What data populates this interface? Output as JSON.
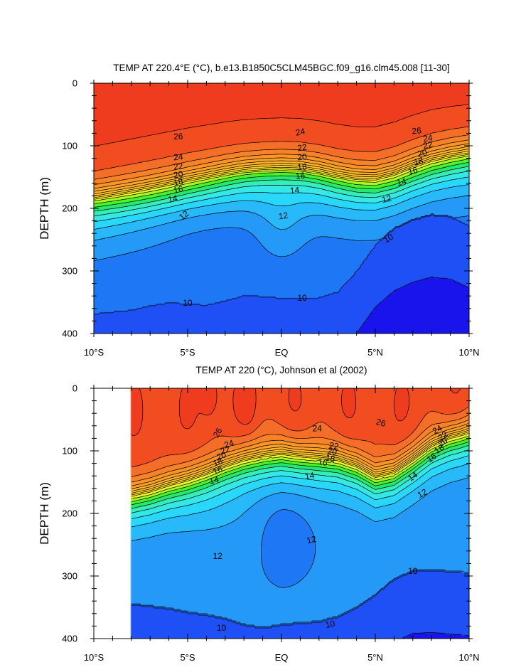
{
  "chart_data": [
    {
      "type": "contour",
      "title": "TEMP AT 220.4°E (°C), b.e13.B1850C5CLM45BGC.f09_g16.clm45.008 [11-30]",
      "ylabel": "DEPTH (m)",
      "xlim": [
        -10,
        10
      ],
      "ylim": [
        0,
        400
      ],
      "y_inverted": true,
      "xticks": [
        -10,
        -5,
        0,
        5,
        10
      ],
      "xtick_labels": [
        "10°S",
        "5°S",
        "EQ",
        "5°N",
        "10°N"
      ],
      "yticks": [
        0,
        100,
        200,
        300,
        400
      ],
      "ytick_labels": [
        "0",
        "100",
        "200",
        "300",
        "400"
      ],
      "levels_labeled": [
        "10",
        "12",
        "14",
        "16",
        "18",
        "20",
        "22",
        "24",
        "26"
      ],
      "data_start_lat": -10,
      "regions": [
        {
          "lat": [
            -10,
            -8,
            -7,
            -6,
            -5,
            -4,
            -3,
            -2,
            -1,
            0,
            1,
            2,
            3,
            4,
            5,
            6,
            7,
            8,
            9,
            10
          ],
          "depth": [
            368,
            362,
            355,
            350,
            352,
            354,
            347,
            339,
            340,
            343,
            343,
            342,
            333,
            300,
            258,
            232,
            218,
            210,
            213,
            227
          ],
          "t": 9.5
        },
        {
          "lat": [
            -10,
            -8,
            -6,
            -4,
            -2,
            0,
            2,
            4,
            6,
            8,
            10
          ],
          "depth": [
            400,
            400,
            400,
            400,
            400,
            400,
            400,
            400,
            400,
            340,
            350
          ],
          "t": 8.5
        }
      ],
      "annotations": [
        {
          "text": "10",
          "lat": -5.0,
          "depth": 351,
          "rot": 0
        },
        {
          "text": "10",
          "lat": 1.1,
          "depth": 343,
          "rot": 0
        },
        {
          "text": "10",
          "lat": 5.7,
          "depth": 248,
          "rot": -30
        },
        {
          "text": "12",
          "lat": -5.2,
          "depth": 211,
          "rot": -38
        },
        {
          "text": "12",
          "lat": 0.1,
          "depth": 212,
          "rot": -8
        },
        {
          "text": "12",
          "lat": 5.6,
          "depth": 185,
          "rot": -12
        },
        {
          "text": "14",
          "lat": -5.8,
          "depth": 185,
          "rot": -12
        },
        {
          "text": "14",
          "lat": 0.7,
          "depth": 171,
          "rot": -5
        },
        {
          "text": "14",
          "lat": 6.4,
          "depth": 158,
          "rot": -15
        },
        {
          "text": "16",
          "lat": -5.5,
          "depth": 170,
          "rot": -12
        },
        {
          "text": "16",
          "lat": 1.0,
          "depth": 148,
          "rot": -5
        },
        {
          "text": "16",
          "lat": 7.0,
          "depth": 140,
          "rot": -15
        },
        {
          "text": "18",
          "lat": -5.5,
          "depth": 158,
          "rot": -12
        },
        {
          "text": "18",
          "lat": 1.1,
          "depth": 134,
          "rot": -5
        },
        {
          "text": "18",
          "lat": 7.3,
          "depth": 125,
          "rot": -12
        },
        {
          "text": "20",
          "lat": -5.5,
          "depth": 146,
          "rot": -10
        },
        {
          "text": "20",
          "lat": 1.1,
          "depth": 118,
          "rot": -5
        },
        {
          "text": "20",
          "lat": 7.5,
          "depth": 112,
          "rot": -12
        },
        {
          "text": "22",
          "lat": -5.5,
          "depth": 133,
          "rot": -8
        },
        {
          "text": "22",
          "lat": 1.1,
          "depth": 103,
          "rot": -8
        },
        {
          "text": "22",
          "lat": 7.8,
          "depth": 99,
          "rot": -10
        },
        {
          "text": "24",
          "lat": -5.5,
          "depth": 118,
          "rot": -5
        },
        {
          "text": "24",
          "lat": 1.0,
          "depth": 78,
          "rot": -12
        },
        {
          "text": "24",
          "lat": 7.8,
          "depth": 88,
          "rot": -8
        },
        {
          "text": "26",
          "lat": -5.5,
          "depth": 85,
          "rot": -3
        },
        {
          "text": "26",
          "lat": 7.2,
          "depth": 76,
          "rot": -5
        }
      ]
    },
    {
      "type": "contour",
      "title": "TEMP AT 220 (°C), Johnson et al (2002)",
      "ylabel": "DEPTH (m)",
      "xlim": [
        -10,
        10
      ],
      "ylim": [
        0,
        400
      ],
      "y_inverted": true,
      "xticks": [
        -10,
        -5,
        0,
        5,
        10
      ],
      "xtick_labels": [
        "10°S",
        "5°S",
        "EQ",
        "5°N",
        "10°N"
      ],
      "yticks": [
        0,
        100,
        200,
        300,
        400
      ],
      "ytick_labels": [
        "0",
        "100",
        "200",
        "300",
        "400"
      ],
      "levels_labeled": [
        "10",
        "12",
        "14",
        "16",
        "18",
        "20",
        "22",
        "24",
        "26"
      ],
      "data_start_lat": -8,
      "regions": [
        {
          "lat": [
            -8,
            -7,
            -6,
            -5,
            -4,
            -3,
            -2,
            -1,
            0,
            1,
            2,
            3,
            4,
            5,
            6,
            7,
            8,
            9,
            10
          ],
          "depth": [
            345,
            348,
            352,
            358,
            362,
            368,
            378,
            383,
            378,
            375,
            373,
            365,
            350,
            330,
            305,
            292,
            290,
            293,
            295
          ],
          "t": 9.5
        }
      ],
      "annotations": [
        {
          "text": "10",
          "lat": -3.2,
          "depth": 383,
          "rot": 0
        },
        {
          "text": "10",
          "lat": 2.6,
          "depth": 377,
          "rot": -12
        },
        {
          "text": "10",
          "lat": 7.0,
          "depth": 292,
          "rot": 0
        },
        {
          "text": "12",
          "lat": -3.4,
          "depth": 268,
          "rot": 0
        },
        {
          "text": "12",
          "lat": 1.6,
          "depth": 242,
          "rot": -12
        },
        {
          "text": "12",
          "lat": 7.5,
          "depth": 168,
          "rot": -28
        },
        {
          "text": "14",
          "lat": -3.6,
          "depth": 147,
          "rot": -12
        },
        {
          "text": "14",
          "lat": 1.5,
          "depth": 140,
          "rot": -8
        },
        {
          "text": "14",
          "lat": 7.0,
          "depth": 141,
          "rot": -35
        },
        {
          "text": "16",
          "lat": -3.4,
          "depth": 131,
          "rot": -20
        },
        {
          "text": "16",
          "lat": 2.2,
          "depth": 118,
          "rot": 12
        },
        {
          "text": "16",
          "lat": 8.0,
          "depth": 111,
          "rot": -35
        },
        {
          "text": "18",
          "lat": -3.4,
          "depth": 118,
          "rot": -22
        },
        {
          "text": "18",
          "lat": 2.6,
          "depth": 112,
          "rot": 10
        },
        {
          "text": "18",
          "lat": 8.4,
          "depth": 97,
          "rot": -35
        },
        {
          "text": "20",
          "lat": -3.2,
          "depth": 108,
          "rot": -22
        },
        {
          "text": "20",
          "lat": 2.7,
          "depth": 101,
          "rot": 10
        },
        {
          "text": "20",
          "lat": 8.6,
          "depth": 86,
          "rot": -35
        },
        {
          "text": "22",
          "lat": -3.0,
          "depth": 99,
          "rot": -20
        },
        {
          "text": "22",
          "lat": 2.8,
          "depth": 92,
          "rot": 8
        },
        {
          "text": "22",
          "lat": 8.6,
          "depth": 76,
          "rot": -35
        },
        {
          "text": "24",
          "lat": -2.8,
          "depth": 89,
          "rot": -18
        },
        {
          "text": "24",
          "lat": 1.9,
          "depth": 64,
          "rot": 0
        },
        {
          "text": "24",
          "lat": 8.3,
          "depth": 66,
          "rot": -30
        },
        {
          "text": "26",
          "lat": -3.4,
          "depth": 71,
          "rot": -60
        },
        {
          "text": "26",
          "lat": 5.3,
          "depth": 55,
          "rot": 15
        }
      ]
    }
  ]
}
